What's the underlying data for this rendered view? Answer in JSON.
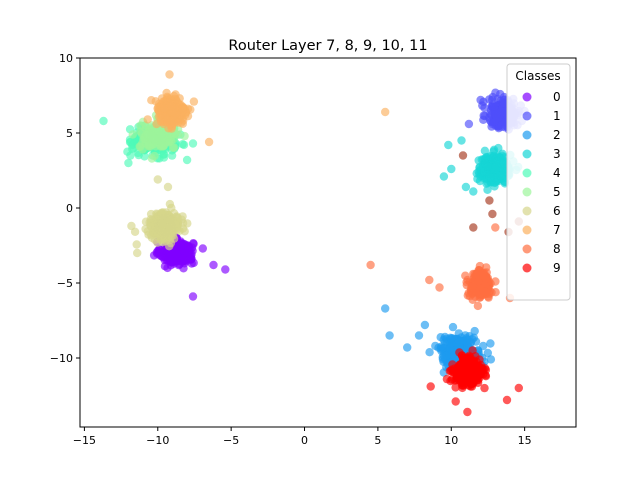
{
  "chart_data": {
    "type": "scatter",
    "title": "Router Layer 7, 8, 9, 10, 11",
    "xlabel": "",
    "ylabel": "",
    "xlim": [
      -15.3,
      18.5
    ],
    "ylim": [
      -14.6,
      10.0
    ],
    "xticks": [
      -15,
      -10,
      -5,
      0,
      5,
      10,
      15
    ],
    "yticks": [
      10,
      5,
      0,
      -5,
      -10
    ],
    "grid": false,
    "legend": {
      "title": "Classes",
      "position": "top-right"
    },
    "series": [
      {
        "name": "0",
        "color": "#8000ff",
        "center": [
          -8.7,
          -3.0
        ],
        "spread": [
          1.0,
          0.7
        ],
        "count": 260,
        "outliers": [
          [
            -5.4,
            -4.1
          ],
          [
            -7.6,
            -5.9
          ],
          [
            -6.2,
            -3.8
          ]
        ]
      },
      {
        "name": "1",
        "color": "#4f4ffb",
        "center": [
          13.6,
          6.3
        ],
        "spread": [
          1.0,
          0.9
        ],
        "count": 220,
        "outliers": [
          [
            11.2,
            5.6
          ],
          [
            12.0,
            7.2
          ]
        ]
      },
      {
        "name": "2",
        "color": "#1d9bef",
        "center": [
          10.6,
          -9.6
        ],
        "spread": [
          1.3,
          1.0
        ],
        "count": 230,
        "outliers": [
          [
            5.5,
            -6.7
          ],
          [
            5.8,
            -8.5
          ],
          [
            7.0,
            -9.3
          ],
          [
            7.8,
            -8.5
          ],
          [
            8.2,
            -7.8
          ]
        ]
      },
      {
        "name": "3",
        "color": "#16d5d5",
        "center": [
          13.0,
          2.6
        ],
        "spread": [
          1.0,
          0.9
        ],
        "count": 240,
        "outliers": [
          [
            9.5,
            2.1
          ],
          [
            10.0,
            2.6
          ],
          [
            9.8,
            4.2
          ],
          [
            10.7,
            4.5
          ],
          [
            11.0,
            1.4
          ],
          [
            11.5,
            1.1
          ]
        ]
      },
      {
        "name": "4",
        "color": "#4ffbb8",
        "center": [
          -10.3,
          4.5
        ],
        "spread": [
          1.3,
          0.8
        ],
        "count": 250,
        "outliers": [
          [
            -13.7,
            5.8
          ],
          [
            -12.0,
            3.0
          ],
          [
            -7.6,
            4.3
          ],
          [
            -8.0,
            3.2
          ]
        ]
      },
      {
        "name": "5",
        "color": "#9cf59b",
        "center": [
          -9.9,
          4.8
        ],
        "spread": [
          1.2,
          0.8
        ],
        "count": 150,
        "outliers": [
          [
            -11.7,
            4.9
          ],
          [
            -10.4,
            3.3
          ]
        ]
      },
      {
        "name": "6",
        "color": "#d5d58b",
        "center": [
          -9.5,
          -1.2
        ],
        "spread": [
          0.9,
          0.8
        ],
        "count": 260,
        "outliers": [
          [
            -10.0,
            1.9
          ],
          [
            -9.3,
            1.4
          ],
          [
            -11.8,
            -1.2
          ],
          [
            -11.4,
            -3.0
          ]
        ]
      },
      {
        "name": "7",
        "color": "#fbb060",
        "center": [
          -9.1,
          6.4
        ],
        "spread": [
          0.9,
          0.9
        ],
        "count": 260,
        "outliers": [
          [
            -9.2,
            8.9
          ],
          [
            -6.5,
            4.4
          ],
          [
            5.5,
            6.4
          ]
        ]
      },
      {
        "name": "8",
        "color": "#ff6f40",
        "center": [
          12.0,
          -5.1
        ],
        "spread": [
          0.7,
          0.8
        ],
        "count": 230,
        "outliers": [
          [
            4.5,
            -3.8
          ],
          [
            8.5,
            -4.8
          ],
          [
            9.2,
            -5.3
          ],
          [
            14.0,
            -6.0
          ],
          [
            13.0,
            -1.3
          ]
        ]
      },
      {
        "name": "9",
        "color": "#ff0000",
        "center": [
          11.2,
          -10.9
        ],
        "spread": [
          0.9,
          0.9
        ],
        "count": 240,
        "outliers": [
          [
            8.6,
            -11.9
          ],
          [
            13.8,
            -12.8
          ],
          [
            14.6,
            -12.0
          ],
          [
            10.3,
            -12.9
          ],
          [
            11.1,
            -13.6
          ]
        ]
      }
    ],
    "stray_points": [
      {
        "color": "#b0503a",
        "points": [
          [
            12.8,
            -0.4
          ],
          [
            12.6,
            0.5
          ],
          [
            13.9,
            -1.6
          ],
          [
            14.6,
            -0.9
          ],
          [
            11.5,
            -1.3
          ],
          [
            10.8,
            3.5
          ]
        ]
      }
    ]
  }
}
